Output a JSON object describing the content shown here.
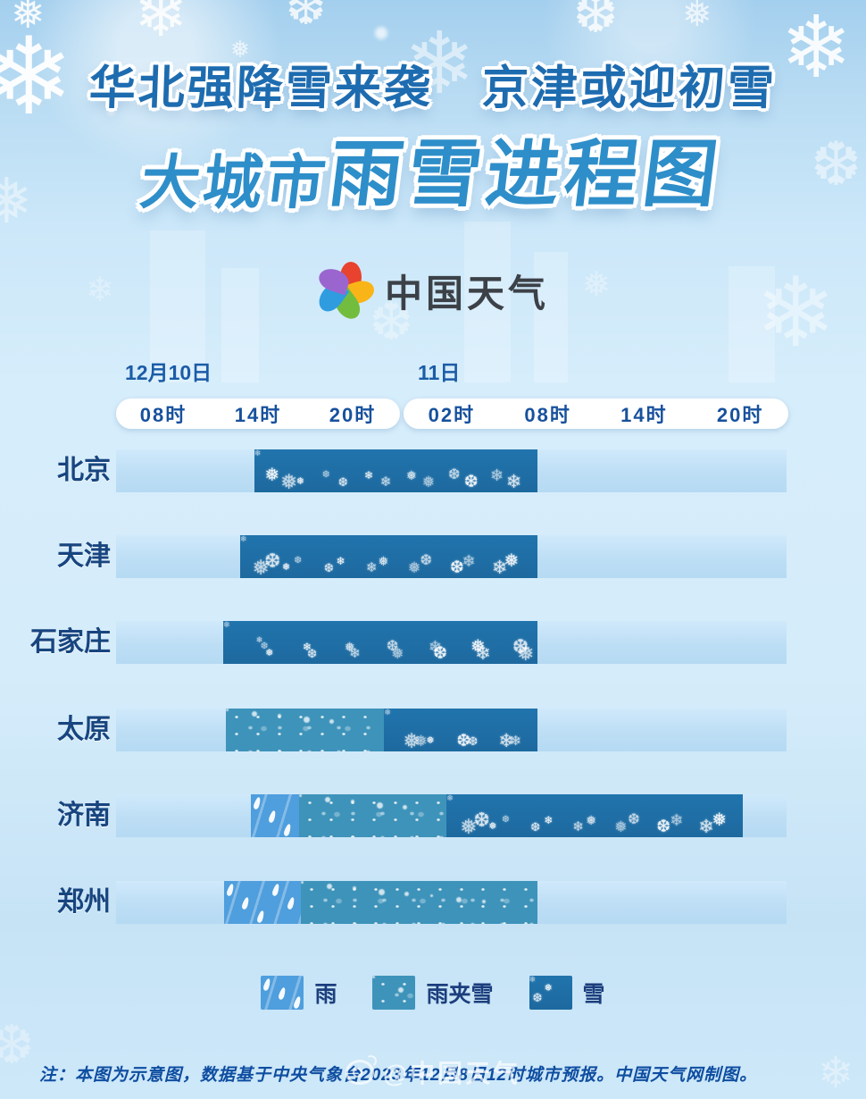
{
  "header": {
    "title": "华北强降雪来袭　京津或迎初雪",
    "subtitle_prefix": "大城市",
    "subtitle_main": "雨雪进程图"
  },
  "logo": {
    "text": "中国天气",
    "petal_colors": [
      "#e8432e",
      "#f9b517",
      "#72bd3d",
      "#2f9ce0",
      "#9b65cf"
    ]
  },
  "axis": {
    "day1_label": "12月10日",
    "day2_label": "11日",
    "ticks_day1": [
      "08时",
      "14时",
      "20时"
    ],
    "ticks_day2": [
      "02时",
      "08时",
      "14时",
      "20时"
    ]
  },
  "chart_data": {
    "type": "bar",
    "variant": "weather-timeline-gantt",
    "title": "大城市雨雪进程图",
    "x_axis": {
      "day_groups": [
        "12月10日",
        "11日"
      ],
      "tick_labels": [
        "08时",
        "14时",
        "20时",
        "02时",
        "08时",
        "14时",
        "20时"
      ],
      "tick_pcts": [
        7.1,
        21.3,
        35.7,
        49.5,
        64.2,
        78.8,
        93.1
      ]
    },
    "rows": [
      {
        "city": "北京",
        "segments": [
          {
            "type": "snow",
            "start_pct": 20.6,
            "end_pct": 62.9,
            "approx_time": "10日14时—11日08时"
          }
        ]
      },
      {
        "city": "天津",
        "segments": [
          {
            "type": "snow",
            "start_pct": 18.5,
            "end_pct": 62.9,
            "approx_time": "10日13时—11日08时"
          }
        ]
      },
      {
        "city": "石家庄",
        "segments": [
          {
            "type": "snow",
            "start_pct": 16.0,
            "end_pct": 62.9,
            "approx_time": "10日12时—11日08时"
          }
        ]
      },
      {
        "city": "太原",
        "segments": [
          {
            "type": "sleet",
            "start_pct": 16.4,
            "end_pct": 40.0,
            "approx_time": "10日12时—10日23时"
          },
          {
            "type": "snow",
            "start_pct": 40.0,
            "end_pct": 62.9,
            "approx_time": "10日23时—11日08时"
          }
        ]
      },
      {
        "city": "济南",
        "segments": [
          {
            "type": "rain",
            "start_pct": 20.1,
            "end_pct": 27.3,
            "approx_time": "10日14时—10日17时"
          },
          {
            "type": "sleet",
            "start_pct": 27.3,
            "end_pct": 49.3,
            "approx_time": "10日17时—11日02时"
          },
          {
            "type": "snow",
            "start_pct": 49.3,
            "end_pct": 93.5,
            "approx_time": "11日02时—11日20时"
          }
        ]
      },
      {
        "city": "郑州",
        "segments": [
          {
            "type": "rain",
            "start_pct": 16.1,
            "end_pct": 27.6,
            "approx_time": "10日12时—10日17时"
          },
          {
            "type": "sleet",
            "start_pct": 27.6,
            "end_pct": 62.9,
            "approx_time": "10日17时—11日08时"
          }
        ]
      }
    ],
    "legend_position": "bottom-center",
    "colors": {
      "rain": "#4f9edd",
      "sleet": "#3e93ba",
      "snow": "#1d6ba3",
      "track": "#bddef5"
    }
  },
  "legend": {
    "items": [
      {
        "type": "rain",
        "label": "雨"
      },
      {
        "type": "sleet",
        "label": "雨夹雪"
      },
      {
        "type": "snow",
        "label": "雪"
      }
    ]
  },
  "footer": {
    "note": "注：本图为示意图，数据基于中央气象台2023年12月8日12时城市预报。中国天气网制图。",
    "watermark": "@中国天气"
  },
  "decor": {
    "glyphs": [
      "❄",
      "❅",
      "❆"
    ]
  }
}
